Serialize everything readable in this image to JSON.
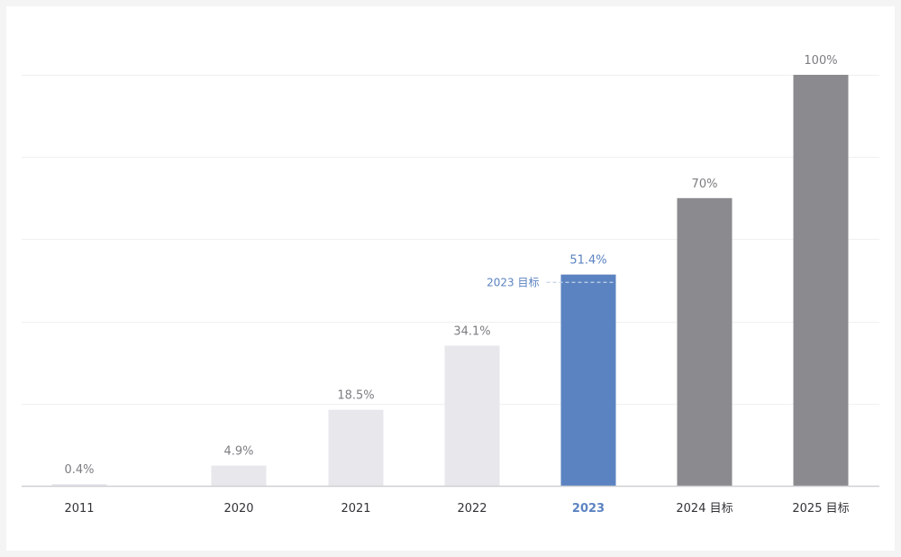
{
  "chart_data": {
    "type": "bar",
    "categories": [
      "2011",
      "2020",
      "2021",
      "2022",
      "2023",
      "2024 目标",
      "2025 目标"
    ],
    "values": [
      0.4,
      4.9,
      18.5,
      34.1,
      51.4,
      70,
      100
    ],
    "value_labels": [
      "0.4%",
      "4.9%",
      "18.5%",
      "34.1%",
      "51.4%",
      "70%",
      "100%"
    ],
    "ylim": [
      0,
      100
    ],
    "grid": true,
    "highlight_category": "2023",
    "bar_colors": {
      "actual": "#e7e7ec",
      "highlight": "#5b83c1",
      "target": "#8b8b8f"
    },
    "target_marker": {
      "label": "2023 目标",
      "value": 49.5,
      "color": "#5b83c1"
    }
  }
}
